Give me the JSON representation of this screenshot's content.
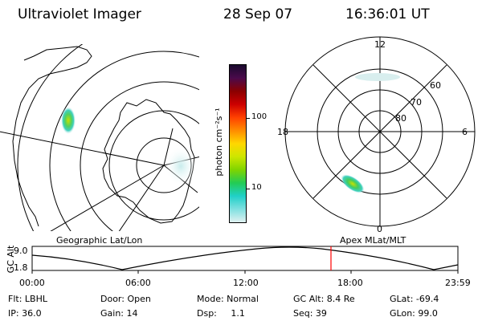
{
  "header": {
    "instrument": "Ultraviolet Imager",
    "date": "28 Sep 07",
    "time": "16:36:01 UT"
  },
  "colorbar": {
    "unit_label": "photon cm⁻²s⁻¹",
    "ticks": [
      {
        "value": 100,
        "label": "100"
      },
      {
        "value": 10,
        "label": "10"
      }
    ],
    "scale": "log",
    "colors_top_to_bottom": [
      "#1a0a2e",
      "#4b0a4b",
      "#8b0000",
      "#cc0000",
      "#ff4000",
      "#ff8c00",
      "#ffd700",
      "#cde600",
      "#7fd400",
      "#22cc55",
      "#20d0c8",
      "#80e0e0",
      "#e0f0f0"
    ]
  },
  "geo_map": {
    "label": "Geographic Lat/Lon"
  },
  "polar_map": {
    "label": "Apex MLat/MLT",
    "mlt_labels": {
      "top": "12",
      "left": "18",
      "right": "6",
      "bottom": "0"
    },
    "lat_labels": [
      "60",
      "70",
      "80"
    ]
  },
  "altitude_plot": {
    "ylabel": "GC Alt",
    "yticks": [
      "9.0",
      "1.8"
    ],
    "xticks": [
      "00:00",
      "06:00",
      "12:00",
      "18:00",
      "23:59"
    ],
    "current_marker_time": "16:36"
  },
  "info": {
    "filter": "Flt: LBHL",
    "door": "Door: Open",
    "mode": "Mode: Normal",
    "gc_alt": "GC Alt: 8.4 Re",
    "glat": "GLat: -69.4",
    "ip": "IP: 36.0",
    "gain": "Gain: 14",
    "dsp": "Dsp:     1.1",
    "seq": "Seq: 39",
    "glon": "GLon: 99.0"
  }
}
